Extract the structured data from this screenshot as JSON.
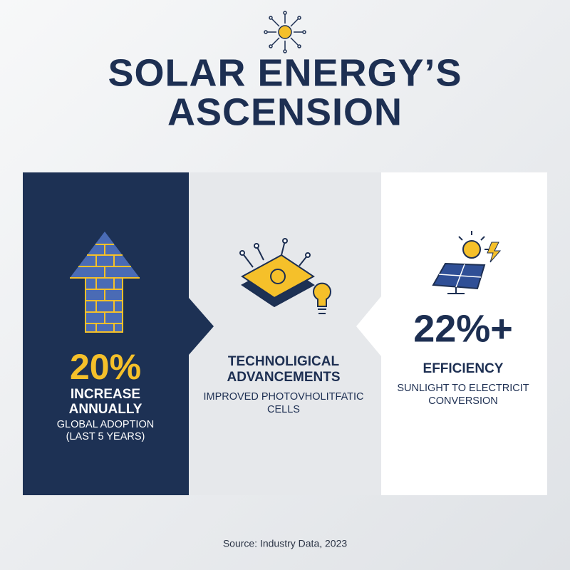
{
  "header": {
    "title_lines": [
      "SOLAR ENERGY’S",
      "ASCENSION"
    ]
  },
  "panels": [
    {
      "stat": "20%",
      "heading_lines": [
        "INCREASE",
        "ANNUALLY"
      ],
      "detail_lines": [
        "GLOBAL ADOPTION",
        "(LAST 5 YEARS)"
      ]
    },
    {
      "heading_lines": [
        "TECHNOLIGICAL",
        "ADVANCEMENTS"
      ],
      "detail_lines": [
        "IMPROVED PHOTOVHOLITFATIC",
        "CELLS"
      ]
    },
    {
      "stat": "22%+",
      "heading_lines": [
        "EFFICIENCY"
      ],
      "detail_lines": [
        "SUNLIGHT TO ELECTRICIT",
        "CONVERSION"
      ]
    }
  ],
  "footer": {
    "source": "Source: Industry Data, 2023"
  }
}
